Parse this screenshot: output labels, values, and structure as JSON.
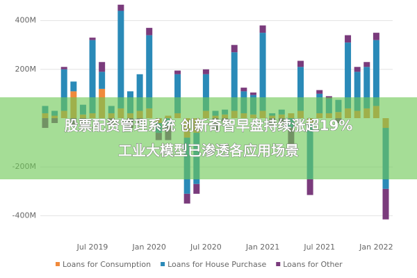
{
  "chart_data": {
    "type": "stacked-bar",
    "categories": [
      null,
      null,
      null,
      null,
      null,
      "Jul 2019",
      null,
      null,
      null,
      null,
      null,
      "Jan 2020",
      null,
      null,
      null,
      null,
      null,
      "Jul 2020",
      null,
      null,
      null,
      null,
      null,
      "Jan 2021",
      null,
      null,
      null,
      null,
      null,
      "Jul 2021",
      null,
      null,
      null,
      null,
      null,
      "Jan 2022",
      null
    ],
    "series": [
      {
        "name": "Loans for Consumption",
        "color": "#f08a3c",
        "values": [
          20,
          10,
          30,
          110,
          15,
          20,
          120,
          20,
          40,
          20,
          30,
          40,
          -20,
          10,
          20,
          -80,
          -60,
          30,
          10,
          15,
          30,
          20,
          15,
          30,
          10,
          15,
          20,
          30,
          -20,
          20,
          20,
          25,
          40,
          30,
          40,
          50,
          -40
        ]
      },
      {
        "name": "Loans for House Purchase",
        "color": "#2a8ab8",
        "values": [
          30,
          20,
          170,
          40,
          40,
          300,
          70,
          30,
          400,
          90,
          150,
          300,
          -40,
          -30,
          160,
          -230,
          -210,
          150,
          20,
          20,
          240,
          90,
          80,
          320,
          10,
          20,
          -40,
          180,
          -230,
          80,
          60,
          50,
          270,
          160,
          170,
          270,
          -250
        ]
      },
      {
        "name": "Loans for Other",
        "color": "#7a3b7c",
        "values": [
          -40,
          -20,
          10,
          -30,
          -20,
          10,
          40,
          -30,
          25,
          -40,
          -20,
          30,
          -30,
          -60,
          15,
          -40,
          -40,
          20,
          -50,
          -20,
          30,
          15,
          10,
          30,
          -30,
          -20,
          -80,
          25,
          -65,
          15,
          10,
          -20,
          30,
          20,
          20,
          30,
          -125
        ]
      }
    ],
    "ylim": [
      -470,
      470
    ],
    "yticks": [
      {
        "value": -400,
        "label": "-400M"
      },
      {
        "value": -200,
        "label": "-200M"
      },
      {
        "value": 200,
        "label": "200M"
      },
      {
        "value": 400,
        "label": "400M"
      }
    ],
    "grid": true
  },
  "banner": {
    "lines": [
      "股票配资管理系统 创新奇智早盘持续涨超19%",
      "工业大模型已渗透各应用场景"
    ]
  }
}
